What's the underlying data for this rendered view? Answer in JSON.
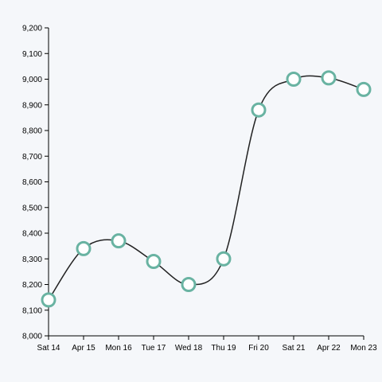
{
  "chart_data": {
    "type": "line",
    "title": "",
    "xlabel": "",
    "ylabel": "",
    "categories": [
      "Sat 14",
      "Apr 15",
      "Mon 16",
      "Tue 17",
      "Wed 18",
      "Thu 19",
      "Fri 20",
      "Sat 21",
      "Apr 22",
      "Mon 23"
    ],
    "series": [
      {
        "values": [
          8140,
          8340,
          8370,
          8290,
          8200,
          8300,
          8880,
          9000,
          9005,
          8960
        ]
      }
    ],
    "ylim": [
      8000,
      9200
    ],
    "yticks": [
      8000,
      8100,
      8200,
      8300,
      8400,
      8500,
      8600,
      8700,
      8800,
      8900,
      9000,
      9100,
      9200
    ],
    "ytick_labels": [
      "8,000",
      "8,100",
      "8,200",
      "8,300",
      "8,400",
      "8,500",
      "8,600",
      "8,700",
      "8,800",
      "8,900",
      "9,000",
      "9,100",
      "9,200"
    ],
    "grid": false,
    "legend": "none",
    "curve": "smooth",
    "colors": {
      "line": "#222222",
      "marker_stroke": "#69b3a2",
      "marker_fill": "#ffffff",
      "background": "#f5f7fa"
    }
  }
}
